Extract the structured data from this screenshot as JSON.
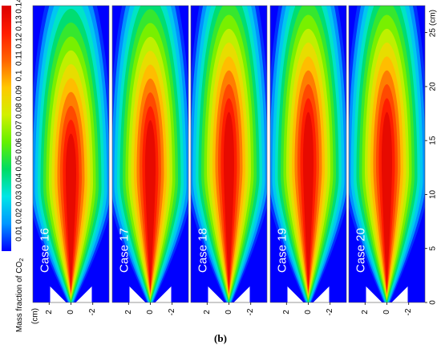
{
  "caption": "(b)",
  "chart_data": {
    "type": "heatmap",
    "panels": [
      "Case 16",
      "Case 17",
      "Case 18",
      "Case 19",
      "Case 20"
    ],
    "colorbar": {
      "label_main": "Mass fraction of CO",
      "label_sub": "2",
      "ticks": [
        "0.01",
        "0.02",
        "0.03",
        "0.04",
        "0.05",
        "0.06",
        "0.07",
        "0.08",
        "0.09",
        "0.1",
        "0.11",
        "0.12",
        "0.13",
        "0.14"
      ],
      "range": [
        0,
        0.14
      ]
    },
    "y_axis": {
      "unit_label": "(cm)",
      "ticks": [
        "0",
        "5",
        "10",
        "15",
        "20",
        "25"
      ],
      "range": [
        0,
        27.5
      ]
    },
    "x_axis": {
      "unit_label": "(cm)",
      "ticks": [
        "2",
        "0",
        "-2"
      ],
      "range": [
        3.5,
        -3.5
      ]
    },
    "flame": {
      "peak_value": 0.14,
      "peak_height_cm": [
        12,
        12.5,
        13,
        13,
        13
      ],
      "peak_length_cm": [
        6,
        7.5,
        8,
        8,
        8
      ]
    },
    "colors": [
      "#0000ff",
      "#0096ff",
      "#00e6e6",
      "#00dc64",
      "#64f000",
      "#d2f000",
      "#ffc800",
      "#ff6400",
      "#ff1e00",
      "#dc0000"
    ]
  }
}
